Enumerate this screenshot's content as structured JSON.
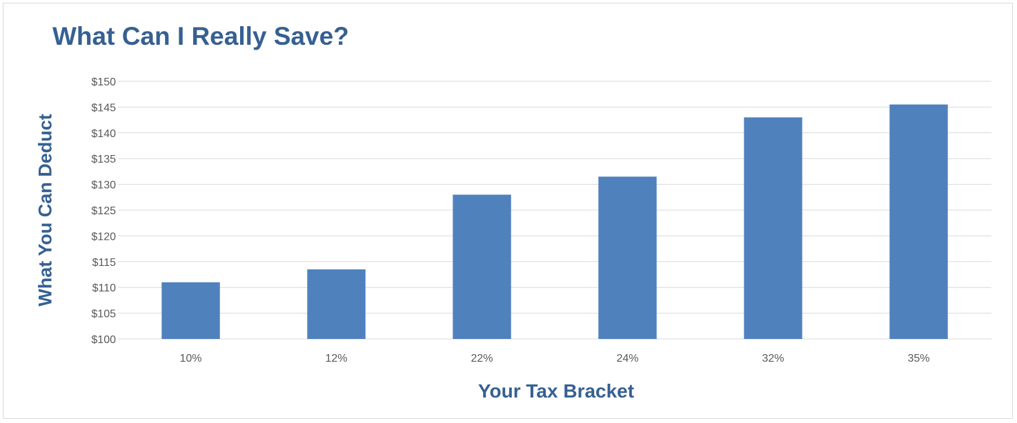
{
  "chart_data": {
    "type": "bar",
    "title": "What Can I Really Save?",
    "xlabel": "Your Tax Bracket",
    "ylabel": "What You Can Deduct",
    "categories": [
      "10%",
      "12%",
      "22%",
      "24%",
      "32%",
      "35%"
    ],
    "values": [
      111,
      113.5,
      128,
      131.5,
      143,
      145.5
    ],
    "ylim": [
      100,
      150
    ],
    "yticks": [
      100,
      105,
      110,
      115,
      120,
      125,
      130,
      135,
      140,
      145,
      150
    ],
    "ytick_prefix": "$",
    "grid": true,
    "bar_color": "#4f81bd"
  }
}
